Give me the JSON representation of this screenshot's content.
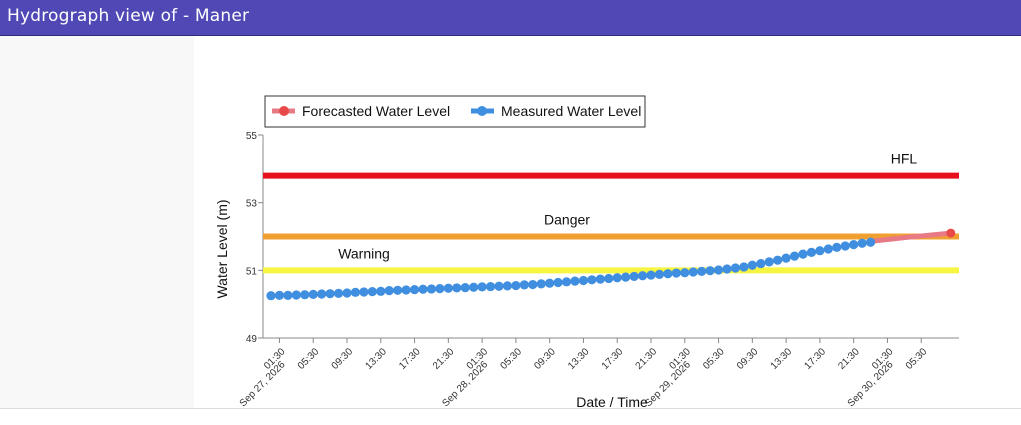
{
  "header": {
    "title": "Hydrograph view of - Maner"
  },
  "chart_data": {
    "type": "line",
    "title": "",
    "xlabel": "Date / Time",
    "ylabel": "Water Level (m)",
    "ylim": [
      49,
      55
    ],
    "y_ticks": [
      "49",
      "51",
      "53",
      "55"
    ],
    "grid": false,
    "legend_placement": "top-left",
    "x_ticks": [
      {
        "label": "01:30",
        "sub": "Sep 27, 2026"
      },
      {
        "label": "05:30"
      },
      {
        "label": "09:30"
      },
      {
        "label": "13:30"
      },
      {
        "label": "17:30"
      },
      {
        "label": "21:30"
      },
      {
        "label": "01:30",
        "sub": "Sep 28, 2026"
      },
      {
        "label": "05:30"
      },
      {
        "label": "09:30"
      },
      {
        "label": "13:30"
      },
      {
        "label": "17:30"
      },
      {
        "label": "21:30"
      },
      {
        "label": "01:30",
        "sub": "Sep 29, 2026"
      },
      {
        "label": "05:30"
      },
      {
        "label": "09:30"
      },
      {
        "label": "13:30"
      },
      {
        "label": "17:30"
      },
      {
        "label": "21:30"
      },
      {
        "label": "01:30",
        "sub": "Sep 30, 2026"
      },
      {
        "label": "05:30"
      }
    ],
    "x_tick_hours": [
      0,
      4,
      8,
      12,
      16,
      20,
      24,
      28,
      32,
      36,
      40,
      44,
      48,
      52,
      56,
      60,
      64,
      68,
      72,
      76
    ],
    "x_range_hours": [
      -1,
      80
    ],
    "thresholds": [
      {
        "label": "HFL",
        "value": 53.8,
        "color": "#e8101c"
      },
      {
        "label": "Danger",
        "value": 52.0,
        "color": "#f0a030"
      },
      {
        "label": "Warning",
        "value": 51.0,
        "color": "#f5f542"
      }
    ],
    "series": [
      {
        "name": "Forecasted Water Level",
        "color": "#e84a4a",
        "line_color": "#e87a86",
        "x_hours": [
          70.5,
          74.5,
          79.5
        ],
        "values": [
          51.87,
          51.98,
          52.1
        ]
      },
      {
        "name": "Measured Water Level",
        "color": "#3f8ee0",
        "x_hours": [
          -1,
          0,
          1,
          2,
          3,
          4,
          5,
          6,
          7,
          8,
          9,
          10,
          11,
          12,
          13,
          14,
          15,
          16,
          17,
          18,
          19,
          20,
          21,
          22,
          23,
          24,
          25,
          26,
          27,
          28,
          29,
          30,
          31,
          32,
          33,
          34,
          35,
          36,
          37,
          38,
          39,
          40,
          41,
          42,
          43,
          44,
          45,
          46,
          47,
          48,
          49,
          50,
          51,
          52,
          53,
          54,
          55,
          56,
          57,
          58,
          59,
          60,
          61,
          62,
          63,
          64,
          65,
          66,
          67,
          68,
          69,
          70
        ],
        "values": [
          50.25,
          50.26,
          50.26,
          50.27,
          50.28,
          50.29,
          50.3,
          50.31,
          50.32,
          50.33,
          50.35,
          50.36,
          50.37,
          50.38,
          50.4,
          50.41,
          50.42,
          50.43,
          50.44,
          50.45,
          50.46,
          50.47,
          50.48,
          50.49,
          50.5,
          50.51,
          50.52,
          50.53,
          50.54,
          50.55,
          50.57,
          50.58,
          50.6,
          50.62,
          50.64,
          50.66,
          50.68,
          50.7,
          50.72,
          50.74,
          50.76,
          50.78,
          50.8,
          50.82,
          50.84,
          50.86,
          50.88,
          50.9,
          50.92,
          50.93,
          50.95,
          50.97,
          50.99,
          51.01,
          51.04,
          51.07,
          51.1,
          51.15,
          51.2,
          51.25,
          51.3,
          51.36,
          51.42,
          51.48,
          51.53,
          51.58,
          51.63,
          51.68,
          51.72,
          51.76,
          51.8,
          51.83
        ]
      }
    ]
  }
}
